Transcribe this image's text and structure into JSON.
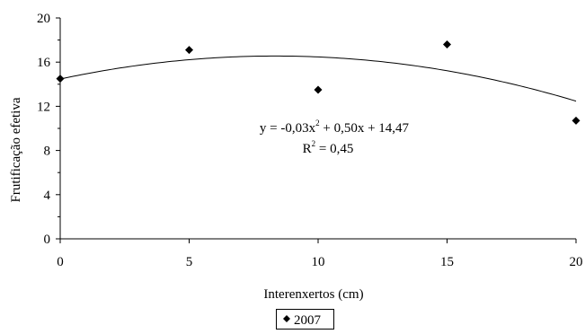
{
  "chart_data": {
    "type": "scatter",
    "title": "",
    "xlabel": "Interenxertos (cm)",
    "ylabel": "Frutificação efetiva",
    "xlim": [
      0,
      20
    ],
    "ylim": [
      0,
      20
    ],
    "x_ticks": [
      0,
      5,
      10,
      15,
      20
    ],
    "y_ticks": [
      0,
      4,
      8,
      12,
      16,
      20
    ],
    "grid": false,
    "legend": {
      "position": "bottom-center",
      "entries": [
        "2007"
      ]
    },
    "series": [
      {
        "name": "2007",
        "marker": "diamond",
        "color": "#000000",
        "x": [
          0,
          5,
          10,
          15,
          20
        ],
        "y": [
          14.5,
          17.1,
          13.5,
          17.6,
          10.7
        ]
      }
    ],
    "trendline": {
      "type": "polynomial",
      "order": 2,
      "coefficients": {
        "a": -0.03,
        "b": 0.5,
        "c": 14.47
      },
      "color": "#000000"
    },
    "annotations": {
      "equation": {
        "prefix": "y = -0,03x",
        "sup": "2",
        "suffix": " + 0,50x + 14,47"
      },
      "r2": {
        "prefix": "R",
        "sup": "2",
        "suffix": " = 0,45"
      }
    }
  }
}
